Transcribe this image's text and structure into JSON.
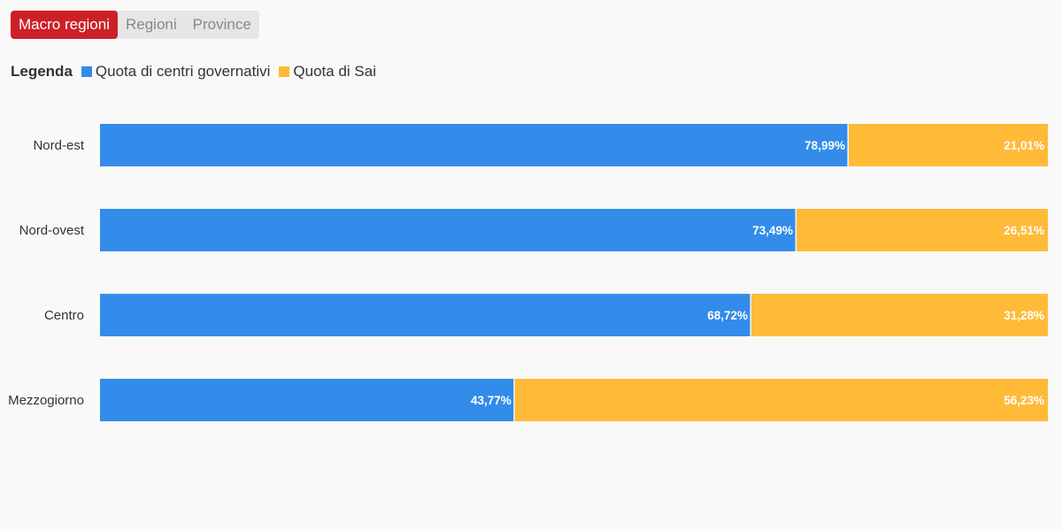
{
  "tabs": [
    {
      "label": "Macro regioni",
      "active": true
    },
    {
      "label": "Regioni",
      "active": false
    },
    {
      "label": "Province",
      "active": false
    }
  ],
  "legend": {
    "title": "Legenda",
    "items": [
      {
        "label": "Quota di centri governativi",
        "color": "#338ce9"
      },
      {
        "label": "Quota di Sai",
        "color": "#ffba38"
      }
    ]
  },
  "chart_data": {
    "type": "bar",
    "orientation": "horizontal",
    "stacked": true,
    "xlim": [
      0,
      100
    ],
    "categories": [
      "Nord-est",
      "Nord-ovest",
      "Centro",
      "Mezzogiorno"
    ],
    "series": [
      {
        "name": "Quota di centri governativi",
        "color": "#338ce9",
        "values": [
          78.99,
          73.49,
          68.72,
          43.77
        ],
        "labels": [
          "78,99%",
          "73,49%",
          "68,72%",
          "43,77%"
        ]
      },
      {
        "name": "Quota di Sai",
        "color": "#ffba38",
        "values": [
          21.01,
          26.51,
          31.28,
          56.23
        ],
        "labels": [
          "21,01%",
          "26,51%",
          "31,28%",
          "56,23%"
        ]
      }
    ]
  }
}
